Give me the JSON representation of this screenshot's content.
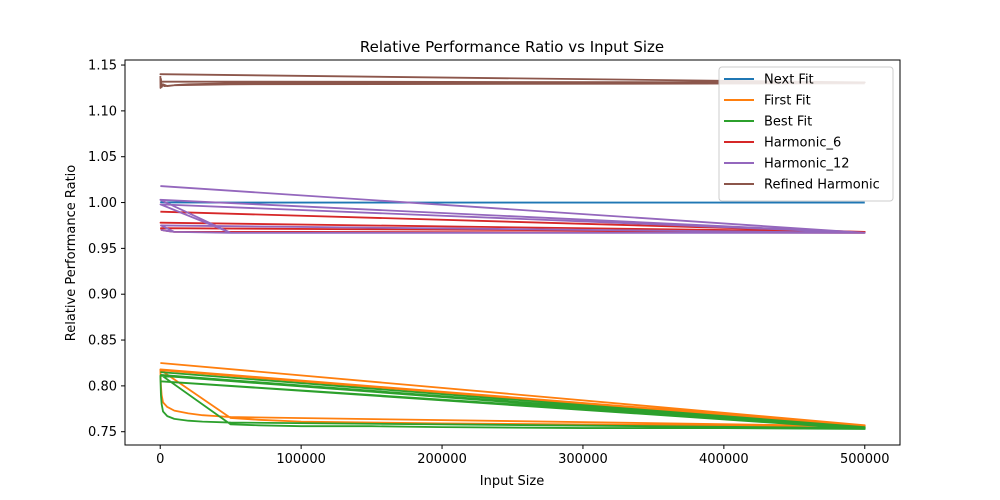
{
  "chart_data": {
    "type": "line",
    "title": "Relative Performance Ratio vs Input Size",
    "xlabel": "Input Size",
    "ylabel": "Relative Performance Ratio",
    "xlim": [
      -25000,
      525000
    ],
    "ylim": [
      0.7355,
      1.1555
    ],
    "xticks": [
      0,
      100000,
      200000,
      300000,
      400000,
      500000
    ],
    "xtick_labels": [
      "0",
      "100000",
      "200000",
      "300000",
      "400000",
      "500000"
    ],
    "yticks": [
      0.75,
      0.8,
      0.85,
      0.9,
      0.95,
      1.0,
      1.05,
      1.1,
      1.15
    ],
    "ytick_labels": [
      "0.75",
      "0.80",
      "0.85",
      "0.90",
      "0.95",
      "1.00",
      "1.05",
      "1.10",
      "1.15"
    ],
    "grid": false,
    "legend_position": "top-right",
    "series": [
      {
        "name": "Next Fit",
        "color": "#1f77b4",
        "x": [
          100,
          500,
          1000,
          5000,
          10000,
          50000,
          100000,
          500000
        ],
        "y": [
          1.001,
          1.0005,
          1.0003,
          1.0001,
          1.0001,
          1.0,
          1.0,
          1.0
        ]
      },
      {
        "name": "First Fit",
        "color": "#ff7f0e",
        "x": [
          100,
          500000,
          100,
          500,
          1000,
          2000,
          5000,
          10000,
          20000,
          30000,
          40000,
          50000,
          500000,
          500,
          50000,
          70000,
          100000,
          150000,
          200000,
          300000,
          400000,
          500000
        ],
        "y": [
          0.825,
          0.757,
          0.818,
          0.8,
          0.79,
          0.782,
          0.777,
          0.773,
          0.77,
          0.768,
          0.767,
          0.766,
          0.756,
          0.817,
          0.765,
          0.763,
          0.761,
          0.76,
          0.759,
          0.758,
          0.757,
          0.756
        ]
      },
      {
        "name": "Best Fit",
        "color": "#2ca02c",
        "x": [
          100,
          500000,
          200,
          500000,
          100,
          500,
          1000,
          2000,
          5000,
          10000,
          20000,
          30000,
          50000,
          500000,
          500,
          50000,
          70000,
          100000,
          150000,
          200000,
          300000,
          400000,
          500000
        ],
        "y": [
          0.815,
          0.755,
          0.805,
          0.753,
          0.811,
          0.79,
          0.78,
          0.772,
          0.767,
          0.764,
          0.762,
          0.761,
          0.76,
          0.754,
          0.812,
          0.758,
          0.757,
          0.756,
          0.756,
          0.755,
          0.754,
          0.754,
          0.753
        ]
      },
      {
        "name": "Harmonic_6",
        "color": "#d62728",
        "x": [
          100,
          500000,
          200,
          500000,
          500,
          1000,
          5000,
          10000,
          50000,
          100000,
          500000
        ],
        "y": [
          0.99,
          0.968,
          0.978,
          0.968,
          0.972,
          0.97,
          0.969,
          0.968,
          0.968,
          0.968,
          0.967
        ]
      },
      {
        "name": "Harmonic_12",
        "color": "#9467bd",
        "x": [
          100,
          500000,
          100,
          50000,
          200,
          500000,
          500,
          10000,
          1000,
          5000,
          10000,
          50000,
          100000,
          500000
        ],
        "y": [
          1.018,
          0.967,
          1.003,
          0.967,
          0.998,
          0.967,
          0.975,
          0.968,
          0.97,
          0.969,
          0.968,
          0.967,
          0.967,
          0.967
        ]
      },
      {
        "name": "Refined Harmonic",
        "color": "#8c564b",
        "x": [
          100,
          200,
          500,
          1000,
          2000,
          5000,
          10000,
          20000,
          50000,
          100000,
          500000,
          100,
          500000,
          200,
          500,
          1000,
          3000,
          10000,
          50000,
          500000
        ],
        "y": [
          1.138,
          1.125,
          1.135,
          1.126,
          1.129,
          1.127,
          1.128,
          1.129,
          1.13,
          1.13,
          1.131,
          1.14,
          1.131,
          1.132,
          1.128,
          1.129,
          1.127,
          1.128,
          1.129,
          1.13
        ]
      }
    ]
  }
}
